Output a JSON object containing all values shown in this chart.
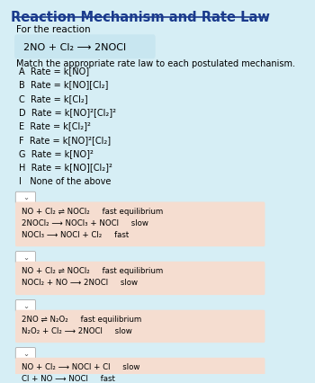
{
  "title": "Reaction Mechanism and Rate Law",
  "bg_color": "#d6eef5",
  "header_color": "#1a3a8c",
  "text_color": "#000000",
  "reaction_box_color": "#c8e6f0",
  "mech_box_color": "#f5ddd0",
  "dropdown_color": "#ffffff",
  "for_reaction_text": "For the reaction",
  "main_reaction": "2NO + Cl₂ ⟶ 2NOCl",
  "match_text": "Match the appropriate rate law to each postulated mechanism.",
  "rate_laws": [
    "A  Rate = k[NO]",
    "B  Rate = k[NO][Cl₂]",
    "C  Rate = k[Cl₂]",
    "D  Rate = k[NO]²[Cl₂]²",
    "E  Rate = k[Cl₂]²",
    "F  Rate = k[NO]²[Cl₂]",
    "G  Rate = k[NO]²",
    "H  Rate = k[NO][Cl₂]²",
    "I   None of the above"
  ],
  "mechanisms": [
    [
      "NO + Cl₂ ⇌ NOCl₂     fast equilibrium",
      "2NOCl₂ ⟶ NOCl₃ + NOCl     slow",
      "NOCl₃ ⟶ NOCl + Cl₂     fast"
    ],
    [
      "NO + Cl₂ ⇌ NOCl₂     fast equilibrium",
      "NOCl₂ + NO ⟶ 2NOCl     slow"
    ],
    [
      "2NO ⇌ N₂O₂     fast equilibrium",
      "N₂O₂ + Cl₂ ⟶ 2NOCl     slow"
    ],
    [
      "NO + Cl₂ ⟶ NOCl + Cl     slow",
      "Cl + NO ⟶ NOCl     fast"
    ]
  ],
  "line_color": "#1a3a8c"
}
